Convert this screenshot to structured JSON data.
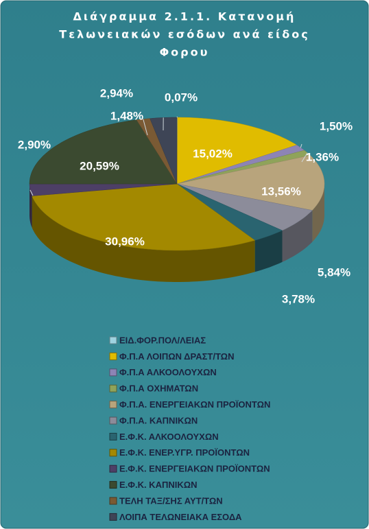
{
  "chart_data": {
    "type": "pie",
    "title": [
      "Διάγραμμα 2.1.1.  Κατανομή",
      "Τελωνειακών εσόδων ανά είδος",
      "Φορου"
    ],
    "categories": [
      "ΕΙΔ.ΦΟΡ.ΠΟΛ/ΛΕΙΑΣ",
      "Φ.Π.Α ΛΟΙΠΩΝ ΔΡΑΣΤ/ΤΩΝ",
      "Φ.Π.Α  ΑΛΚΟΟΛΟΥΧΩΝ",
      "Φ.Π.Α ΟΧΗΜΑΤΩΝ",
      "Φ.Π.Α. ΕΝΕΡΓΕΙΑΚΩΝ ΠΡΟΪΟΝΤΩΝ",
      "Φ.Π.Α. ΚΑΠΝΙΚΩΝ",
      "Ε.Φ.Κ. ΑΛΚΟΟΛΟΥΧΩΝ",
      "Ε.Φ.Κ. ΕΝΕΡ.ΥΓΡ. ΠΡΟΪΟΝΤΩΝ",
      "Ε.Φ.Κ. ΕΝΕΡΓΕΙΑΚΩΝ ΠΡΟΪΟΝΤΩΝ",
      "Ε.Φ.Κ. ΚΑΠΝΙΚΩΝ",
      "ΤΕΛΗ ΤΑΞ/ΣΗΣ ΑΥΤ/ΤΩΝ",
      "ΛΟΙΠΑ ΤΕΛΩΝΕΙΑΚΑ ΕΣΟΔΑ"
    ],
    "values": [
      0.07,
      15.02,
      1.5,
      1.36,
      13.56,
      5.84,
      3.78,
      30.96,
      2.9,
      20.59,
      1.48,
      2.94
    ],
    "value_labels": [
      "0,07%",
      "15,02%",
      "1,50%",
      "1,36%",
      "13,56%",
      "5,84%",
      "3,78%",
      "30,96%",
      "2,90%",
      "20,59%",
      "1,48%",
      "2,94%"
    ],
    "colors": [
      "#9fd3e0",
      "#e0bc00",
      "#8d84b5",
      "#8fa35a",
      "#b8a47c",
      "#8c8c9a",
      "#2a6470",
      "#a38900",
      "#4d3f66",
      "#3b4a30",
      "#7a5a34",
      "#3e4556"
    ],
    "legend": "bottom"
  }
}
